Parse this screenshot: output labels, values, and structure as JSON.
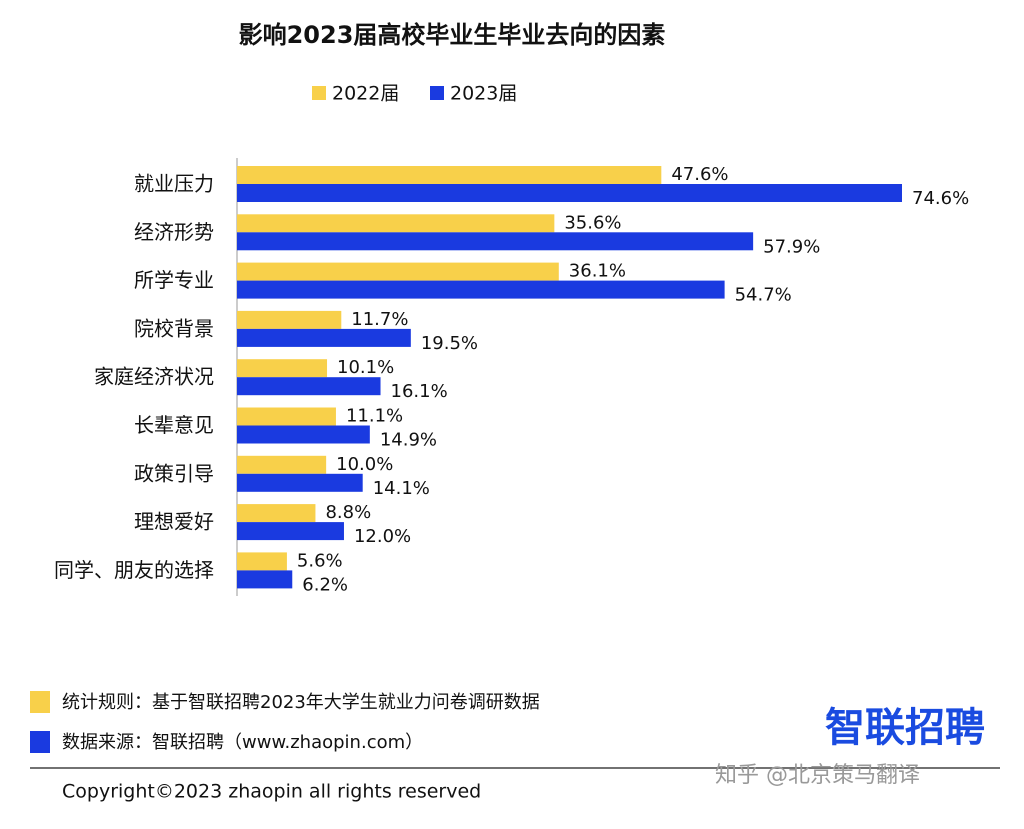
{
  "chart_data": {
    "type": "hbar",
    "title": "影响2023届高校毕业生毕业去向的因素",
    "categories": [
      "就业压力",
      "经济形势",
      "所学专业",
      "院校背景",
      "家庭经济状况",
      "长辈意见",
      "政策引导",
      "理想爱好",
      "同学、朋友的选择"
    ],
    "series": [
      {
        "name": "2022届",
        "color": "#f8d04a",
        "values": [
          47.6,
          35.6,
          36.1,
          11.7,
          10.1,
          11.1,
          10.0,
          8.8,
          5.6
        ],
        "value_labels": [
          "47.6%",
          "35.6%",
          "36.1%",
          "11.7%",
          "10.1%",
          "11.1%",
          "10.0%",
          "8.8%",
          "5.6%"
        ]
      },
      {
        "name": "2023届",
        "color": "#1a3ae0",
        "values": [
          74.6,
          57.9,
          54.7,
          19.5,
          16.1,
          14.9,
          14.1,
          12.0,
          6.2
        ],
        "value_labels": [
          "74.6%",
          "57.9%",
          "54.7%",
          "19.5%",
          "16.1%",
          "14.9%",
          "14.1%",
          "12.0%",
          "6.2%"
        ]
      }
    ],
    "legend": "top"
  },
  "footer": {
    "notes": [
      "统计规则：基于智联招聘2023年大学生就业力问卷调研数据",
      "数据来源：智联招聘（www.zhaopin.com）"
    ],
    "logo": "智联招聘",
    "copyright": "Copyright©2023 zhaopin all rights reserved",
    "watermark": "知乎 @北京策马翻译"
  }
}
